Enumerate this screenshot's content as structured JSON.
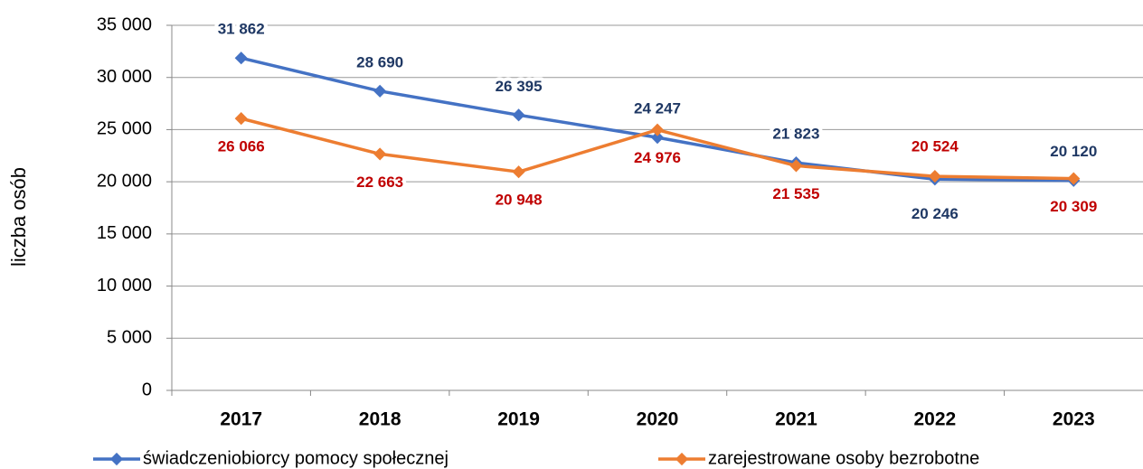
{
  "chart_data": {
    "type": "line",
    "y_label": "liczba osób",
    "categories": [
      "2017",
      "2018",
      "2019",
      "2020",
      "2021",
      "2022",
      "2023"
    ],
    "series": [
      {
        "name": "świadczeniobiorcy pomocy społecznej",
        "color": "#4472c4",
        "label_color": "#1f3864",
        "values": [
          31862,
          28690,
          26395,
          24247,
          21823,
          20246,
          20120
        ],
        "value_labels": [
          "31 862",
          "28 690",
          "26 395",
          "24 247",
          "21 823",
          "20 246",
          "20 120"
        ]
      },
      {
        "name": "zarejestrowane osoby bezrobotne",
        "color": "#ed7d31",
        "label_color": "#c00000",
        "values": [
          26066,
          22663,
          20948,
          24976,
          21535,
          20524,
          20309
        ],
        "value_labels": [
          "26 066",
          "22 663",
          "20 948",
          "24 976",
          "21 535",
          "20 524",
          "20 309"
        ]
      }
    ],
    "ylim": [
      0,
      35000
    ],
    "yticks": [
      0,
      {
        "value": 5000,
        "label": "5 000"
      },
      {
        "value": 10000,
        "label": "10 000"
      },
      {
        "value": 15000,
        "label": "15 000"
      },
      {
        "value": 20000,
        "label": "20 000"
      },
      {
        "value": 25000,
        "label": "25 000"
      },
      {
        "value": 30000,
        "label": "30 000"
      },
      {
        "value": 35000,
        "label": "35 000"
      }
    ],
    "grid": true,
    "legend": "bottom"
  }
}
